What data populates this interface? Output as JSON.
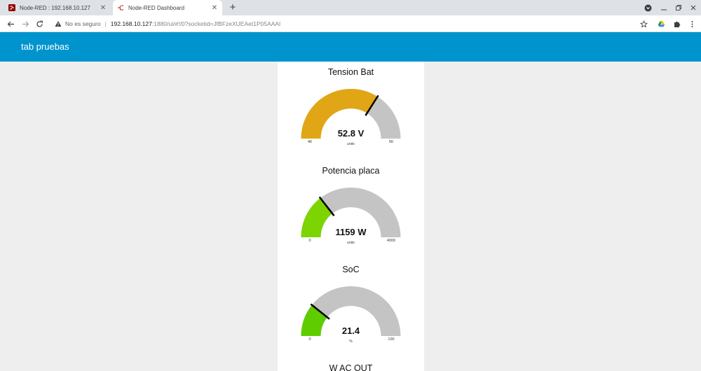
{
  "browser": {
    "tabs": [
      {
        "title": "Node-RED : 192.168.10.127",
        "active": false
      },
      {
        "title": "Node-RED Dashboard",
        "active": true
      }
    ],
    "address": {
      "security_label": "No es seguro",
      "host": "192.168.10.127",
      "path": ":1880/ui/#!/0?socketid=JfBFzeXUEAet1P05AAAl"
    }
  },
  "dashboard": {
    "title": "tab pruebas",
    "colors": {
      "header": "#0094ce",
      "track": "#c4c4c4"
    },
    "gauges": [
      {
        "title": "Tension Bat",
        "display": "52.8 V",
        "value": 52.8,
        "min": 46,
        "max": 56,
        "min_label": "46",
        "max_label": "56",
        "units": "units",
        "color": "#e0a615"
      },
      {
        "title": "Potencia placa",
        "display": "1159 W",
        "value": 1159,
        "min": 0,
        "max": 4000,
        "min_label": "0",
        "max_label": "4000",
        "units": "units",
        "color": "#7cd400"
      },
      {
        "title": "SoC",
        "display": "21.4",
        "value": 21.4,
        "min": 0,
        "max": 100,
        "min_label": "0",
        "max_label": "100",
        "units": "%",
        "color": "#5fcc00"
      },
      {
        "title": "W AC OUT"
      }
    ]
  }
}
